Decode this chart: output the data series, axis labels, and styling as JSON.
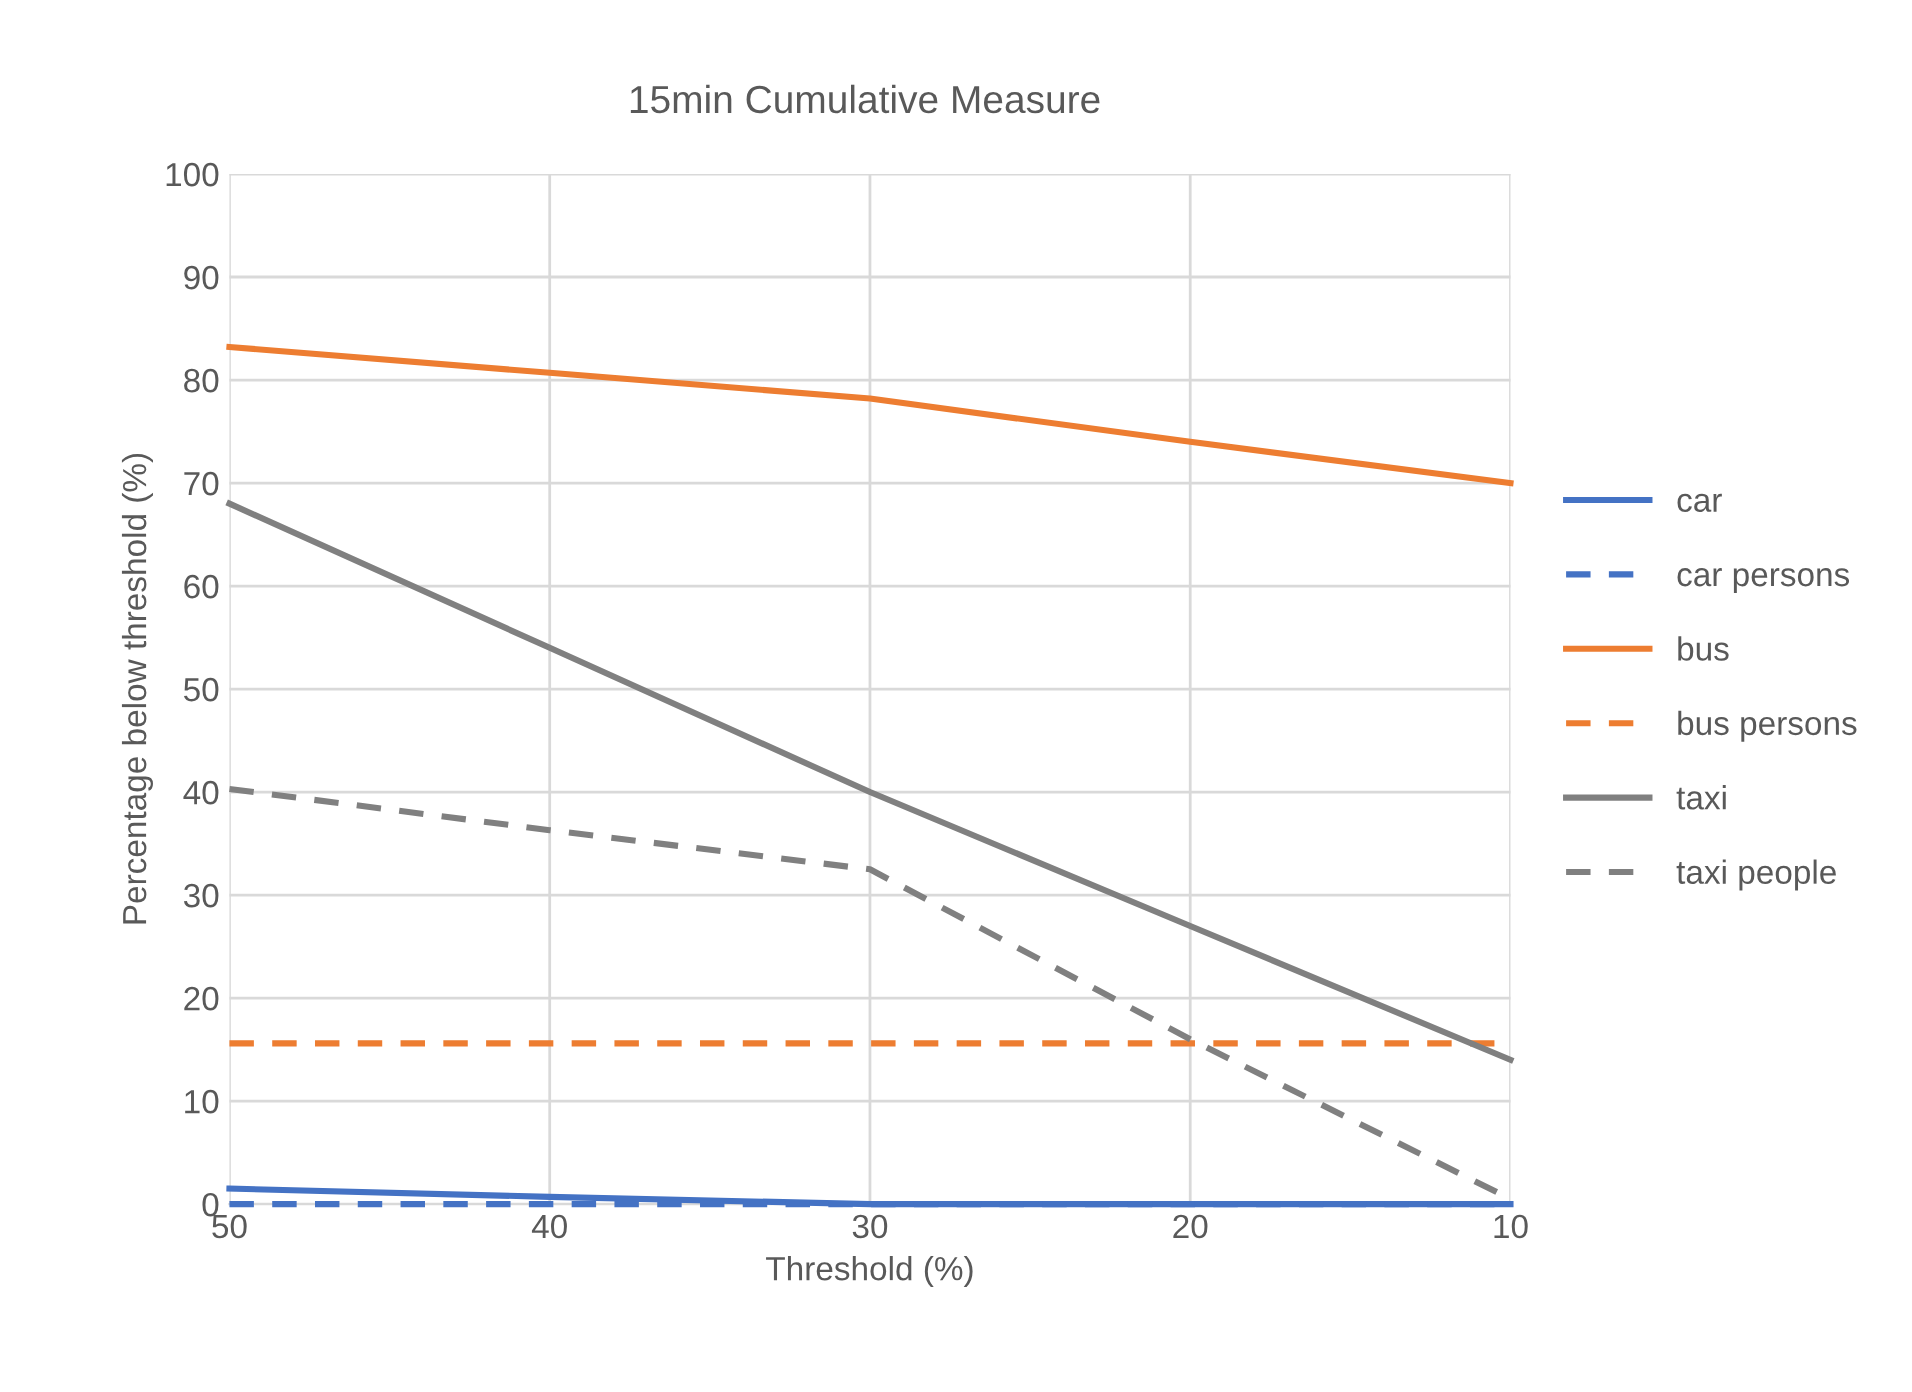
{
  "chart_data": {
    "type": "line",
    "title": "15min Cumulative Measure ",
    "xlabel": "Threshold (%)",
    "ylabel": "Percentage below threshold (%)",
    "x": [
      50,
      40,
      30,
      20,
      10
    ],
    "series": [
      {
        "name": "car",
        "color": "#4472c4",
        "line_style": "solid",
        "values": [
          1.5,
          0.7,
          0,
          0,
          0
        ]
      },
      {
        "name": "car persons",
        "color": "#4472c4",
        "line_style": "dashed",
        "values": [
          0,
          0,
          0,
          0,
          0
        ]
      },
      {
        "name": "bus",
        "color": "#ed7d31",
        "line_style": "solid",
        "values": [
          83.2,
          80.7,
          78.2,
          74,
          70
        ]
      },
      {
        "name": "bus persons ",
        "color": "#ed7d31",
        "line_style": "dashed",
        "values": [
          15.6,
          15.6,
          15.6,
          15.6,
          15.6
        ]
      },
      {
        "name": "taxi",
        "color": "#808080",
        "line_style": "solid",
        "values": [
          68,
          54,
          40,
          27,
          14
        ]
      },
      {
        "name": "taxi people",
        "color": "#808080",
        "line_style": "dashed",
        "values": [
          40.3,
          36.3,
          32.5,
          16,
          0.5
        ]
      }
    ],
    "xlim": [
      50,
      10
    ],
    "xticks": [
      50,
      40,
      30,
      20,
      10
    ],
    "ylim": [
      0,
      100
    ],
    "yticks": [
      0,
      10,
      20,
      30,
      40,
      50,
      60,
      70,
      80,
      90,
      100
    ],
    "grid": true,
    "legend": "right",
    "marker": "none"
  }
}
